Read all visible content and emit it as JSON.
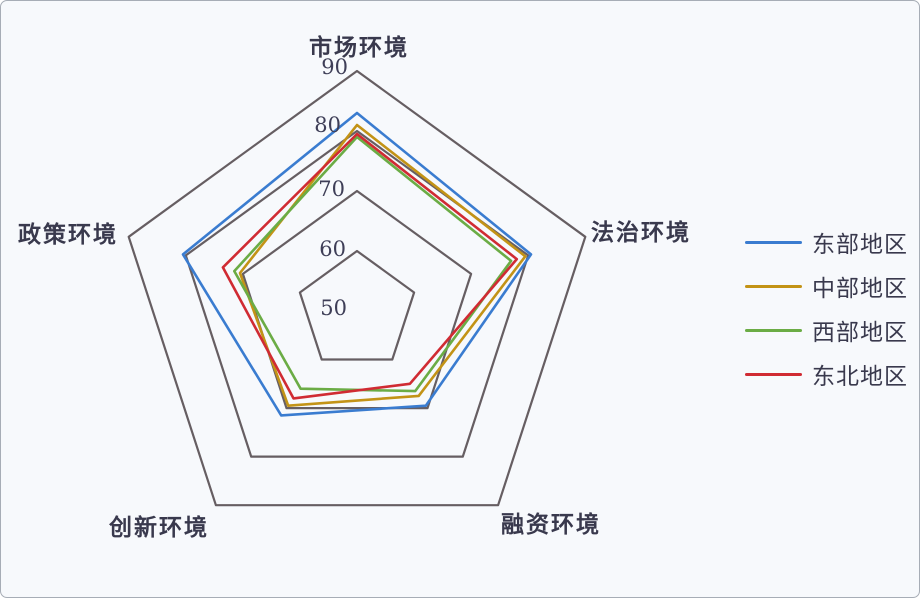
{
  "chart_data": {
    "type": "radar",
    "categories": [
      "市场环境",
      "法治环境",
      "融资环境",
      "创新环境",
      "政策环境"
    ],
    "ticks": [
      "90",
      "80",
      "70",
      "60",
      "50"
    ],
    "scale": {
      "min": 50,
      "max": 90,
      "step": 10
    },
    "grid_color": "#665E62",
    "legend_position": "right",
    "series": [
      {
        "name": "东部地区",
        "color": "#3A7CD0",
        "values": [
          83,
          80.5,
          69.5,
          71.5,
          80.5
        ]
      },
      {
        "name": "中部地区",
        "color": "#C39316",
        "values": [
          81,
          79.5,
          67.5,
          69.5,
          70.5
        ]
      },
      {
        "name": "西部地区",
        "color": "#6BAC45",
        "values": [
          79,
          77,
          66.5,
          66,
          71.5
        ]
      },
      {
        "name": "东北地区",
        "color": "#D02B33",
        "values": [
          79.5,
          78,
          65,
          68,
          73.5
        ]
      }
    ]
  }
}
